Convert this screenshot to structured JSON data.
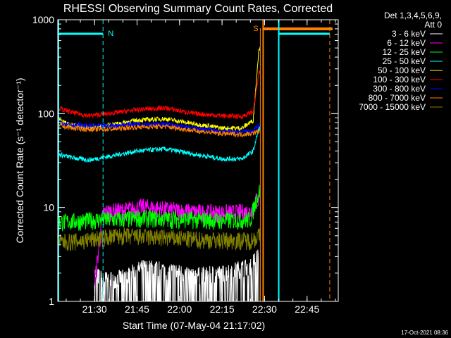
{
  "chart_data": {
    "type": "line",
    "title": "RHESSI Observing Summary Count Rates, Corrected",
    "xlabel": "Start Time (07-May-04 21:17:02)",
    "ylabel": "Corrected Count Rate (s⁻¹ detector⁻¹)",
    "ylim": [
      1,
      1000
    ],
    "yscale": "log",
    "xlim": [
      "21:17:02",
      "22:56:00"
    ],
    "x_ticks": [
      "21:30",
      "21:45",
      "22:00",
      "22:15",
      "22:30",
      "22:45"
    ],
    "y_ticks": [
      "1",
      "10",
      "100",
      "1000"
    ],
    "grid": false,
    "legend_placement": "right",
    "legend_header": [
      "Det 1,3,4,5,6,9,",
      "Att 0"
    ],
    "series": [
      {
        "name": "3 - 6 keV",
        "color": "#ffffff",
        "times": [
          "21:30",
          "21:33",
          "21:40",
          "21:47",
          "21:55",
          "22:05",
          "22:15",
          "22:25",
          "22:27"
        ],
        "values": [
          2.0,
          1.7,
          1.8,
          2.3,
          2.2,
          1.9,
          2.0,
          2.4,
          3.0
        ]
      },
      {
        "name": "6 - 12 keV",
        "color": "#ff00ff",
        "times": [
          "21:30",
          "21:33",
          "21:40",
          "21:47",
          "21:55",
          "22:05",
          "22:15",
          "22:25",
          "22:27"
        ],
        "values": [
          1.5,
          9.0,
          9.3,
          10.2,
          9.6,
          9.0,
          8.8,
          9.0,
          12.0
        ]
      },
      {
        "name": "12 - 25 keV",
        "color": "#00ff00",
        "times": [
          "21:17",
          "21:25",
          "21:33",
          "21:40",
          "21:47",
          "21:55",
          "22:05",
          "22:15",
          "22:25",
          "22:28"
        ],
        "values": [
          7.0,
          7.2,
          7.5,
          7.5,
          7.8,
          7.6,
          7.5,
          7.3,
          7.5,
          15.0
        ]
      },
      {
        "name": "25 - 50 keV",
        "color": "#00ffff",
        "times": [
          "21:17",
          "21:22",
          "21:28",
          "21:35",
          "21:45",
          "21:55",
          "22:05",
          "22:15",
          "22:22",
          "22:26",
          "22:28"
        ],
        "values": [
          37,
          34,
          32,
          35,
          40,
          42,
          37,
          33,
          33,
          40,
          70
        ]
      },
      {
        "name": "50 - 100 keV",
        "color": "#ffff00",
        "times": [
          "21:17",
          "21:22",
          "21:28",
          "21:35",
          "21:45",
          "21:55",
          "22:05",
          "22:15",
          "22:22",
          "22:26",
          "22:28"
        ],
        "values": [
          85,
          76,
          72,
          75,
          85,
          88,
          78,
          70,
          70,
          85,
          500
        ]
      },
      {
        "name": "100 - 300 keV",
        "color": "#ff0000",
        "times": [
          "21:17",
          "21:22",
          "21:28",
          "21:35",
          "21:45",
          "21:55",
          "22:05",
          "22:15",
          "22:22",
          "22:26",
          "22:28"
        ],
        "values": [
          115,
          103,
          95,
          100,
          110,
          115,
          100,
          95,
          93,
          105,
          270
        ]
      },
      {
        "name": "300 - 800 keV",
        "color": "#0000ff",
        "times": [
          "21:17",
          "21:22",
          "21:28",
          "21:35",
          "21:45",
          "21:55",
          "22:05",
          "22:15",
          "22:22",
          "22:26",
          "22:28"
        ],
        "values": [
          82,
          76,
          74,
          74,
          78,
          77,
          70,
          65,
          64,
          66,
          75
        ]
      },
      {
        "name": "800 - 7000 keV",
        "color": "#ff8000",
        "times": [
          "21:17",
          "21:22",
          "21:28",
          "21:35",
          "21:45",
          "21:55",
          "22:05",
          "22:15",
          "22:22",
          "22:26",
          "22:28"
        ],
        "values": [
          75,
          70,
          68,
          68,
          72,
          73,
          66,
          61,
          60,
          62,
          65
        ]
      },
      {
        "name": "7000 - 15000 keV",
        "color": "#808000",
        "times": [
          "21:17",
          "21:25",
          "21:33",
          "21:40",
          "21:47",
          "21:55",
          "22:05",
          "22:15",
          "22:25",
          "22:28"
        ],
        "values": [
          4.3,
          4.4,
          4.8,
          5.0,
          4.9,
          4.8,
          4.6,
          4.5,
          4.5,
          5.0
        ]
      }
    ],
    "annotations": {
      "flags": [
        "N",
        "S"
      ]
    },
    "footer_timestamp": "17-Oct-2021 08:36",
    "colors": {
      "background": "#000000",
      "axes": "#ffffff",
      "eclipse": "#00ffff",
      "saa": "#ff8000"
    }
  }
}
